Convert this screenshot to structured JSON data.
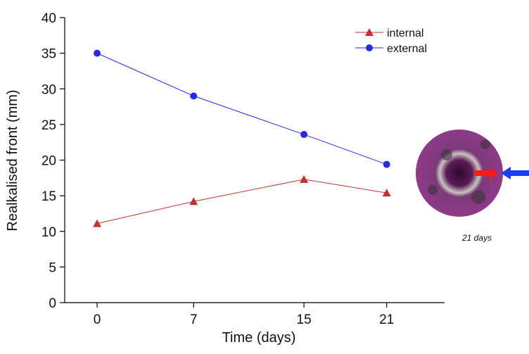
{
  "chart_data": {
    "type": "line",
    "x_label": "Time (days)",
    "y_label": "Realkalised front (mm)",
    "x": [
      0,
      7,
      15,
      21
    ],
    "series": [
      {
        "name": "internal",
        "color": "#c03232",
        "marker": "triangle",
        "values": [
          11.1,
          14.2,
          17.3,
          15.4
        ]
      },
      {
        "name": "external",
        "color": "#2a2ae6",
        "marker": "circle",
        "values": [
          35,
          29,
          23.6,
          19.4
        ]
      }
    ],
    "xlim": [
      -2.35,
      25.2
    ],
    "xticks": [
      0,
      7,
      15,
      21
    ],
    "ylim": [
      0,
      40
    ],
    "yticks": [
      0,
      5,
      10,
      15,
      20,
      25,
      30,
      35,
      40
    ],
    "grid": false,
    "legend": "top-right",
    "annotation": "21 days"
  }
}
